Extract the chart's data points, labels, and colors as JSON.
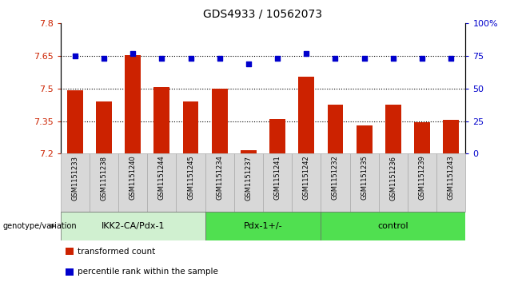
{
  "title": "GDS4933 / 10562073",
  "samples": [
    "GSM1151233",
    "GSM1151238",
    "GSM1151240",
    "GSM1151244",
    "GSM1151245",
    "GSM1151234",
    "GSM1151237",
    "GSM1151241",
    "GSM1151242",
    "GSM1151232",
    "GSM1151235",
    "GSM1151236",
    "GSM1151239",
    "GSM1151243"
  ],
  "groups": [
    {
      "label": "IKK2-CA/Pdx-1",
      "start": 0,
      "end": 5,
      "color": "#d0f0d0"
    },
    {
      "label": "Pdx-1+/-",
      "start": 5,
      "end": 9,
      "color": "#50e050"
    },
    {
      "label": "control",
      "start": 9,
      "end": 14,
      "color": "#50e050"
    }
  ],
  "bar_values": [
    7.49,
    7.44,
    7.655,
    7.505,
    7.44,
    7.5,
    7.215,
    7.36,
    7.555,
    7.425,
    7.33,
    7.425,
    7.345,
    7.355
  ],
  "dot_values": [
    75,
    73,
    77,
    73,
    73,
    73,
    69,
    73,
    77,
    73,
    73,
    73,
    73,
    73
  ],
  "ylim_left": [
    7.2,
    7.8
  ],
  "ylim_right": [
    0,
    100
  ],
  "yticks_left": [
    7.2,
    7.35,
    7.5,
    7.65,
    7.8
  ],
  "yticks_right": [
    0,
    25,
    50,
    75,
    100
  ],
  "bar_color": "#cc2200",
  "dot_color": "#0000cc",
  "dot_size": 18,
  "bar_width": 0.55,
  "label_color_left": "#cc2200",
  "label_color_right": "#0000cc",
  "grid_yticks": [
    7.35,
    7.5,
    7.65
  ],
  "legend_items": [
    {
      "color": "#cc2200",
      "label": "transformed count"
    },
    {
      "color": "#0000cc",
      "label": "percentile rank within the sample"
    }
  ],
  "sample_bg_color": "#d8d8d8",
  "sample_border_color": "#aaaaaa",
  "plot_bg_color": "#ffffff",
  "genotype_label": "genotype/variation"
}
